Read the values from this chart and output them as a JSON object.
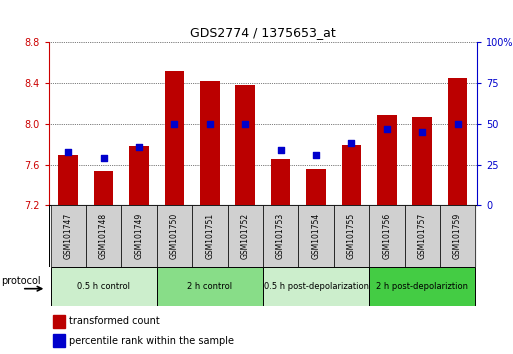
{
  "title": "GDS2774 / 1375653_at",
  "samples": [
    "GSM101747",
    "GSM101748",
    "GSM101749",
    "GSM101750",
    "GSM101751",
    "GSM101752",
    "GSM101753",
    "GSM101754",
    "GSM101755",
    "GSM101756",
    "GSM101757",
    "GSM101759"
  ],
  "transformed_count": [
    7.69,
    7.54,
    7.78,
    8.52,
    8.42,
    8.38,
    7.66,
    7.56,
    7.79,
    8.09,
    8.07,
    8.45
  ],
  "percentile_rank": [
    33,
    29,
    36,
    50,
    50,
    50,
    34,
    31,
    38,
    47,
    45,
    50
  ],
  "ymin": 7.2,
  "ymax": 8.8,
  "yticks": [
    7.2,
    7.6,
    8.0,
    8.4,
    8.8
  ],
  "y2min": 0,
  "y2max": 100,
  "y2ticks": [
    0,
    25,
    50,
    75,
    100
  ],
  "bar_color": "#bb0000",
  "dot_color": "#0000cc",
  "bar_width": 0.55,
  "groups": [
    {
      "label": "0.5 h control",
      "start": 0,
      "end": 3,
      "color": "#cceecc"
    },
    {
      "label": "2 h control",
      "start": 3,
      "end": 6,
      "color": "#88dd88"
    },
    {
      "label": "0.5 h post-depolarization",
      "start": 6,
      "end": 9,
      "color": "#cceecc"
    },
    {
      "label": "2 h post-depolariztion",
      "start": 9,
      "end": 12,
      "color": "#44cc44"
    }
  ],
  "protocol_label": "protocol",
  "legend_bar_label": "transformed count",
  "legend_dot_label": "percentile rank within the sample",
  "left_color": "#cc0000",
  "right_color": "#0000cc"
}
